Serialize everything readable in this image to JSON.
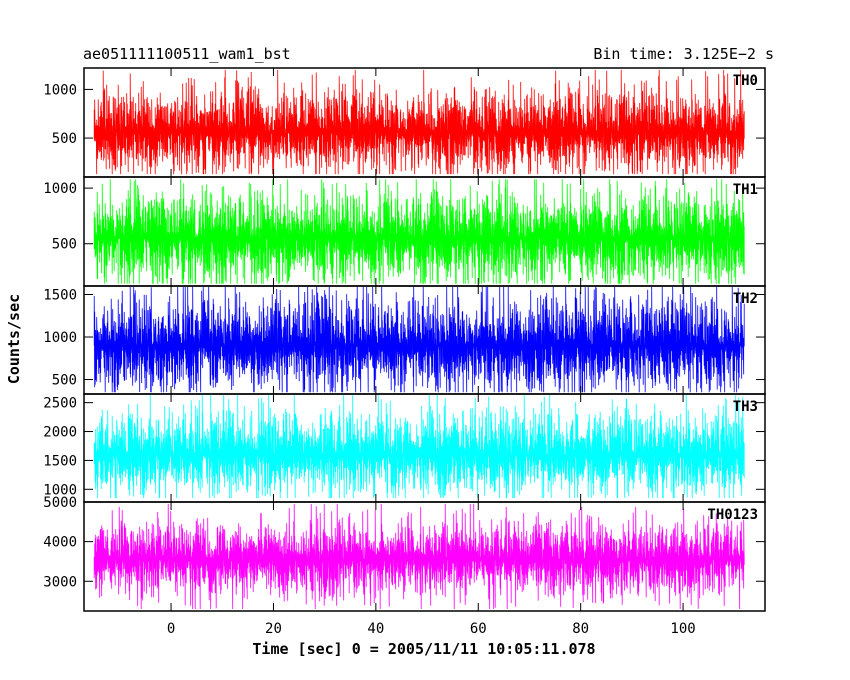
{
  "header": {
    "title": "ae051111100511_wam1_bst",
    "bin_time": "Bin time: 3.125E−2 s"
  },
  "chart_data": {
    "type": "line",
    "xlabel": "Time [sec] 0 = 2005/11/11 10:05:11.078",
    "ylabel": "Counts/sec",
    "xlim": [
      -17,
      116
    ],
    "x_ticks": [
      0,
      20,
      40,
      60,
      80,
      100
    ],
    "x_tick_labels": [
      "0",
      "20",
      "40",
      "60",
      "80",
      "100"
    ],
    "x_data_range": [
      -15,
      112
    ],
    "bin_time_s": 0.03125,
    "grid": false,
    "panels": [
      {
        "name": "TH0",
        "color": "#ff0000",
        "ylim": [
          100,
          1220
        ],
        "y_ticks": [
          500,
          1000
        ],
        "y_tick_labels": [
          "500",
          "1000"
        ],
        "baseline": 560,
        "spread": 210,
        "min": 130,
        "max": 1200
      },
      {
        "name": "TH1",
        "color": "#00ff00",
        "ylim": [
          120,
          1100
        ],
        "y_ticks": [
          500,
          1000
        ],
        "y_tick_labels": [
          "500",
          "1000"
        ],
        "baseline": 550,
        "spread": 200,
        "min": 140,
        "max": 1080
      },
      {
        "name": "TH2",
        "color": "#0000ff",
        "ylim": [
          330,
          1600
        ],
        "y_ticks": [
          500,
          1000,
          1500
        ],
        "y_tick_labels": [
          "500",
          "1000",
          "1500"
        ],
        "baseline": 900,
        "spread": 270,
        "min": 350,
        "max": 1590
      },
      {
        "name": "TH3",
        "color": "#00ffff",
        "ylim": [
          780,
          2650
        ],
        "y_ticks": [
          1000,
          1500,
          2000,
          2500
        ],
        "y_tick_labels": [
          "1000",
          "1500",
          "2000",
          "2500"
        ],
        "baseline": 1600,
        "spread": 350,
        "min": 850,
        "max": 2650
      },
      {
        "name": "TH0123",
        "color": "#ff00ff",
        "ylim": [
          2250,
          5000
        ],
        "y_ticks": [
          3000,
          4000,
          5000
        ],
        "y_tick_labels": [
          "3000",
          "4000",
          "5000"
        ],
        "baseline": 3550,
        "spread": 450,
        "min": 2300,
        "max": 4950
      }
    ]
  }
}
